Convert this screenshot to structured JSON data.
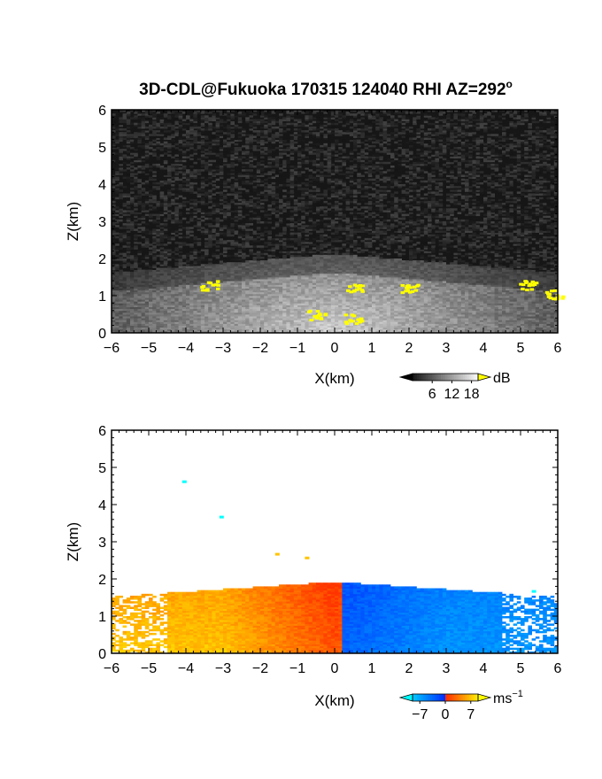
{
  "figure": {
    "title": "3D-CDL@Fukuoka 170315 124040 RHI AZ=292",
    "title_sup": "o"
  },
  "chart_data": [
    {
      "type": "heatmap",
      "variable": "reflectivity",
      "xlabel": "X(km)",
      "ylabel": "Z(km)",
      "xlim": [
        -6,
        6
      ],
      "ylim": [
        0,
        6
      ],
      "xticks": [
        "-6",
        "-5",
        "-4",
        "-3",
        "-2",
        "-1",
        "0",
        "1",
        "2",
        "3",
        "4",
        "5",
        "6"
      ],
      "yticks": [
        "0",
        "1",
        "2",
        "3",
        "4",
        "5",
        "6"
      ],
      "colorbar": {
        "unit": "dB",
        "ticks": [
          "6",
          "12",
          "18"
        ],
        "tick_values": [
          6,
          12,
          18
        ],
        "range": [
          0,
          20
        ],
        "low_color": "#000000",
        "high_color": "#ffff00"
      },
      "echo_region": {
        "x": [
          -6,
          6
        ],
        "z_top_near_center_km": 2.0,
        "z_top_edges_km": 1.5
      },
      "strong_echo_patches": [
        {
          "x": -3.4,
          "z": 1.3
        },
        {
          "x": -0.5,
          "z": 0.5
        },
        {
          "x": 0.5,
          "z": 0.4
        },
        {
          "x": 0.5,
          "z": 1.2
        },
        {
          "x": 2.0,
          "z": 1.2
        },
        {
          "x": 5.2,
          "z": 1.3
        },
        {
          "x": 5.9,
          "z": 1.05
        }
      ]
    },
    {
      "type": "heatmap",
      "variable": "doppler_velocity",
      "xlabel": "X(km)",
      "ylabel": "Z(km)",
      "xlim": [
        -6,
        6
      ],
      "ylim": [
        0,
        6
      ],
      "xticks": [
        "-6",
        "-5",
        "-4",
        "-3",
        "-2",
        "-1",
        "0",
        "1",
        "2",
        "3",
        "4",
        "5",
        "6"
      ],
      "yticks": [
        "0",
        "1",
        "2",
        "3",
        "4",
        "5",
        "6"
      ],
      "colorbar": {
        "unit": "ms",
        "unit_sup": "−1",
        "ticks": [
          "−7",
          "0",
          "7"
        ],
        "tick_values": [
          -7,
          0,
          7
        ],
        "range": [
          -9,
          9
        ],
        "low_color": "#00ffff",
        "high_color": "#ffff00"
      },
      "echo_region": {
        "x": [
          -6,
          6
        ],
        "z_top_near_center_km": 1.9,
        "z_top_edges_km": 1.5
      },
      "isolated_echoes": [
        {
          "x": -4.1,
          "z": 4.65,
          "v": -6
        },
        {
          "x": -3.1,
          "z": 3.7,
          "v": -6
        },
        {
          "x": -0.8,
          "z": 2.6,
          "v": 7
        },
        {
          "x": -1.6,
          "z": 2.7,
          "v": 7
        },
        {
          "x": 5.3,
          "z": 1.7,
          "v": -6
        }
      ]
    }
  ]
}
